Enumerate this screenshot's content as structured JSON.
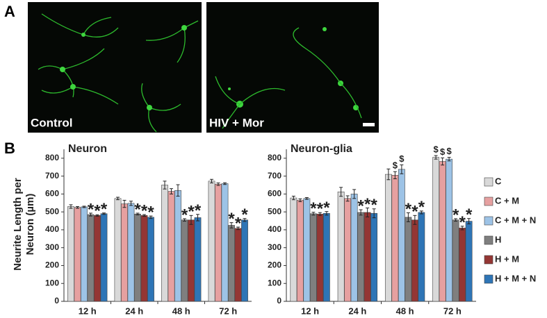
{
  "panel_labels": [
    "A",
    "B"
  ],
  "images": [
    {
      "label": "Control"
    },
    {
      "label": "HIV + Mor"
    }
  ],
  "y_label": "Neurite Length per Neuron (µm)",
  "chart_data": [
    {
      "type": "bar",
      "title": "Neuron",
      "categories": [
        "12 h",
        "24 h",
        "48 h",
        "72 h"
      ],
      "ylim": [
        0,
        850
      ],
      "yticks": [
        0,
        100,
        200,
        300,
        400,
        500,
        600,
        700,
        800
      ],
      "series": [
        {
          "color": "#d9d9d9",
          "values": [
            530,
            575,
            650,
            672
          ],
          "errors": [
            10,
            7,
            22,
            10
          ],
          "markers": [
            null,
            null,
            null,
            null
          ]
        },
        {
          "color": "#e6a0a0",
          "values": [
            525,
            545,
            615,
            655
          ],
          "errors": [
            5,
            20,
            15,
            7
          ],
          "markers": [
            null,
            null,
            null,
            null
          ]
        },
        {
          "color": "#9dc3e6",
          "values": [
            528,
            548,
            620,
            658
          ],
          "errors": [
            4,
            12,
            32,
            5
          ],
          "markers": [
            null,
            null,
            null,
            null
          ]
        },
        {
          "color": "#7f7f7f",
          "values": [
            485,
            488,
            455,
            425
          ],
          "errors": [
            8,
            5,
            7,
            15
          ],
          "markers": [
            "*",
            "*",
            "*",
            "*"
          ]
        },
        {
          "color": "#943634",
          "values": [
            480,
            480,
            455,
            408
          ],
          "errors": [
            4,
            5,
            25,
            7
          ],
          "markers": [
            "*",
            "*",
            "*",
            "*"
          ]
        },
        {
          "color": "#2e75b6",
          "values": [
            490,
            470,
            468,
            455
          ],
          "errors": [
            4,
            7,
            18,
            8
          ],
          "markers": [
            "*",
            "*",
            "*",
            "*"
          ]
        }
      ]
    },
    {
      "type": "bar",
      "title": "Neuron-glia",
      "categories": [
        "12 h",
        "24 h",
        "48 h",
        "72 h"
      ],
      "ylim": [
        0,
        850
      ],
      "yticks": [
        0,
        100,
        200,
        300,
        400,
        500,
        600,
        700,
        800
      ],
      "series": [
        {
          "name": "C",
          "color": "#d9d9d9",
          "values": [
            578,
            612,
            710,
            805
          ],
          "errors": [
            10,
            25,
            30,
            10
          ],
          "markers": [
            null,
            null,
            null,
            "$"
          ]
        },
        {
          "name": "C + M",
          "color": "#e6a0a0",
          "values": [
            565,
            575,
            705,
            782
          ],
          "errors": [
            8,
            15,
            20,
            20
          ],
          "markers": [
            null,
            null,
            "$",
            "$"
          ]
        },
        {
          "name": "C + M + N",
          "color": "#9dc3e6",
          "values": [
            575,
            600,
            738,
            795
          ],
          "errors": [
            5,
            25,
            25,
            10
          ],
          "markers": [
            null,
            null,
            "$",
            "$"
          ]
        },
        {
          "name": "H",
          "color": "#7f7f7f",
          "values": [
            490,
            497,
            470,
            455
          ],
          "errors": [
            8,
            15,
            25,
            7
          ],
          "markers": [
            "*",
            "*",
            "*",
            "*"
          ]
        },
        {
          "name": "H + M",
          "color": "#943634",
          "values": [
            488,
            497,
            455,
            410
          ],
          "errors": [
            8,
            25,
            25,
            10
          ],
          "markers": [
            "*",
            "*",
            "*",
            "*"
          ]
        },
        {
          "name": "H + M + N",
          "color": "#2e75b6",
          "values": [
            492,
            492,
            497,
            448
          ],
          "errors": [
            10,
            25,
            8,
            15
          ],
          "markers": [
            "*",
            "*",
            "*",
            "*"
          ]
        }
      ]
    }
  ]
}
